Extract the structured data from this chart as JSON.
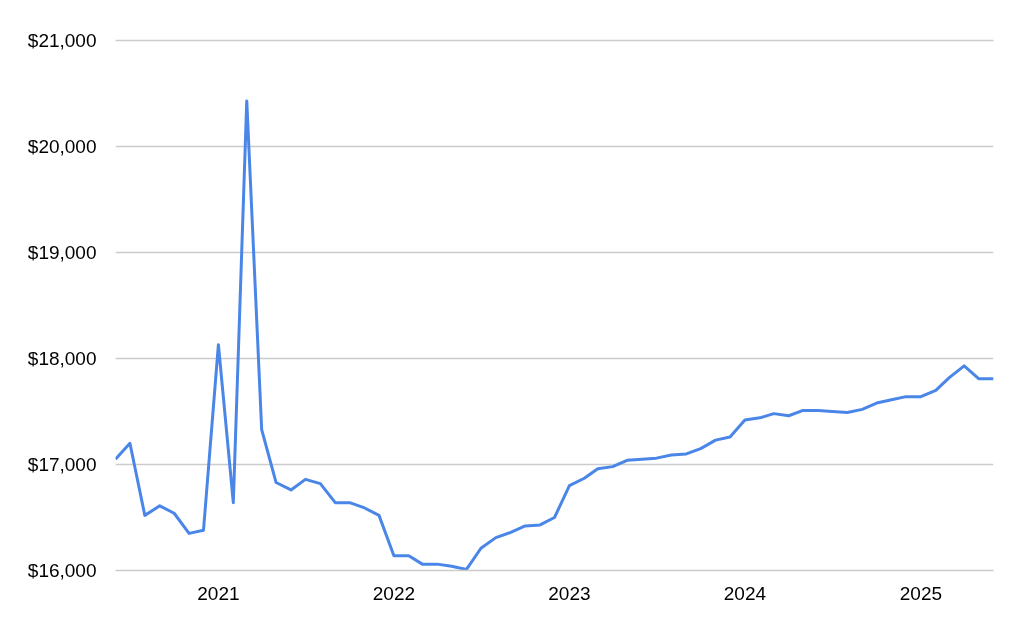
{
  "chart_data": {
    "type": "line",
    "x": [
      "2020-06",
      "2020-07",
      "2020-08",
      "2020-09",
      "2020-10",
      "2020-11",
      "2020-12",
      "2021-01",
      "2021-02",
      "2021-03",
      "2021-04",
      "2021-05",
      "2021-06",
      "2021-07",
      "2021-08",
      "2021-09",
      "2021-10",
      "2021-11",
      "2021-12",
      "2022-01",
      "2022-02",
      "2022-03",
      "2022-04",
      "2022-05",
      "2022-06",
      "2022-07",
      "2022-08",
      "2022-09",
      "2022-10",
      "2022-11",
      "2022-12",
      "2023-01",
      "2023-02",
      "2023-03",
      "2023-04",
      "2023-05",
      "2023-06",
      "2023-07",
      "2023-08",
      "2023-09",
      "2023-10",
      "2023-11",
      "2023-12",
      "2024-01",
      "2024-02",
      "2024-03",
      "2024-04",
      "2024-05",
      "2024-06",
      "2024-07",
      "2024-08",
      "2024-09",
      "2024-10",
      "2024-11",
      "2024-12",
      "2025-01",
      "2025-02",
      "2025-03",
      "2025-04",
      "2025-05",
      "2025-06"
    ],
    "values": [
      17050,
      17200,
      16520,
      16610,
      16540,
      16350,
      16380,
      18130,
      16640,
      20430,
      17330,
      16830,
      16760,
      16860,
      16820,
      16640,
      16640,
      16590,
      16520,
      16140,
      16140,
      16060,
      16060,
      16040,
      16010,
      16210,
      16310,
      16360,
      16420,
      16430,
      16500,
      16800,
      16870,
      16960,
      16980,
      17040,
      17050,
      17060,
      17090,
      17100,
      17150,
      17230,
      17260,
      17420,
      17440,
      17480,
      17460,
      17510,
      17510,
      17500,
      17490,
      17520,
      17580,
      17610,
      17640,
      17640,
      17700,
      17820,
      17930,
      17810,
      17810
    ],
    "color": "#4a86e8",
    "xlim": [
      "2020-06",
      "2025-06"
    ],
    "xticks": [
      "2021",
      "2022",
      "2023",
      "2024",
      "2025"
    ],
    "ylim": [
      16000,
      21000
    ],
    "yticks": [
      {
        "value": 16000,
        "label": "$16,000"
      },
      {
        "value": 17000,
        "label": "$17,000"
      },
      {
        "value": 18000,
        "label": "$18,000"
      },
      {
        "value": 19000,
        "label": "$19,000"
      },
      {
        "value": 20000,
        "label": "$20,000"
      },
      {
        "value": 21000,
        "label": "$21,000"
      }
    ],
    "grid": "y"
  }
}
